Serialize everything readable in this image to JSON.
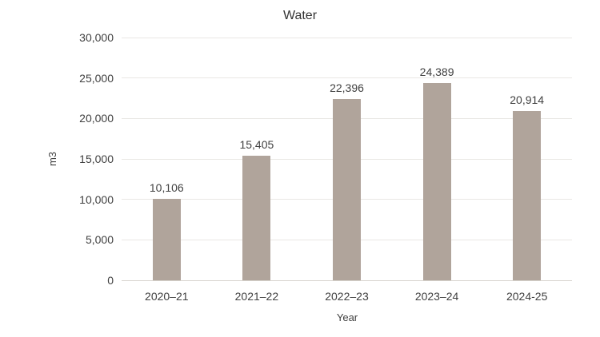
{
  "title": "Water",
  "colors": {
    "bar": "#b0a49b",
    "gridline": "#e9e7e4",
    "baseline": "#d7d3cd",
    "text": "#404040",
    "title_text": "#333333",
    "background": "#ffffff"
  },
  "chart_data": {
    "type": "bar",
    "title": "Water",
    "xlabel": "Year",
    "ylabel": "m3",
    "categories": [
      "2020–21",
      "2021–22",
      "2022–23",
      "2023–24",
      "2024-25"
    ],
    "values": [
      10106,
      15405,
      22396,
      24389,
      20914
    ],
    "data_labels": [
      "10,106",
      "15,405",
      "22,396",
      "24,389",
      "20,914"
    ],
    "ylim": [
      0,
      30000
    ],
    "ytick_interval": 5000,
    "ytick_labels": [
      "0",
      "5,000",
      "10,000",
      "15,000",
      "20,000",
      "25,000",
      "30,000"
    ],
    "grid": "horizontal",
    "legend": "none"
  }
}
